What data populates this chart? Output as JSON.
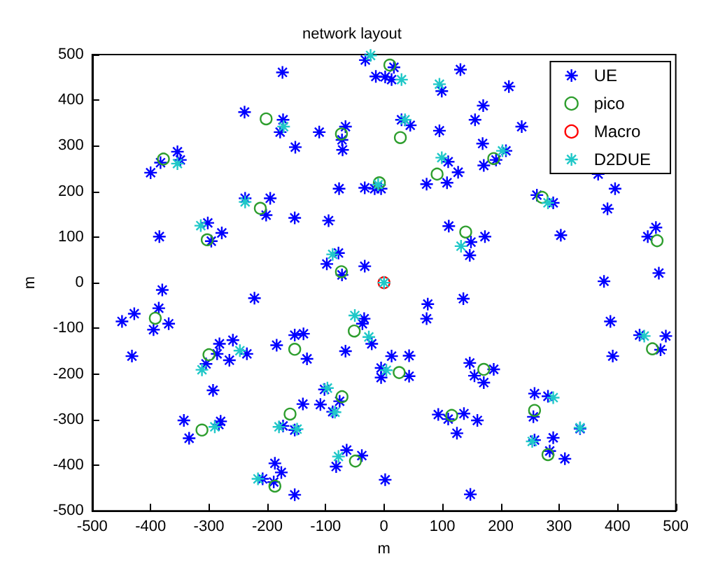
{
  "chart_data": {
    "type": "scatter",
    "title": "network layout",
    "xlabel": "m",
    "ylabel": "m",
    "xlim": [
      -500,
      500
    ],
    "ylim": [
      -500,
      500
    ],
    "xticks": [
      -500,
      -400,
      -300,
      -200,
      -100,
      0,
      100,
      200,
      300,
      400,
      500
    ],
    "yticks": [
      -500,
      -400,
      -300,
      -200,
      -100,
      0,
      100,
      200,
      300,
      400,
      500
    ],
    "grid": false,
    "legend": "top right",
    "series": [
      {
        "name": "UE",
        "color": "#0000ff",
        "marker": "cross",
        "x": [
          -174,
          -239,
          -173,
          -178,
          -152,
          -111,
          -66,
          -72,
          -71,
          -354,
          -349,
          -383,
          -400,
          -77,
          -33,
          -16,
          -5,
          -238,
          -195,
          -202,
          -153,
          -95,
          -302,
          -278,
          -385,
          -296,
          -78,
          -98,
          -33,
          -72,
          -380,
          -32,
          2,
          17,
          -14,
          13,
          131,
          99,
          214,
          170,
          156,
          95,
          30,
          45,
          236,
          169,
          171,
          110,
          127,
          192,
          209,
          73,
          108,
          367,
          396,
          383,
          262,
          290,
          111,
          149,
          173,
          147,
          303,
          466,
          452,
          377,
          471,
          -222,
          -428,
          -386,
          -449,
          -369,
          -395,
          -432,
          -259,
          -282,
          -286,
          -265,
          -235,
          -305,
          -293,
          -343,
          -334,
          -280,
          -283,
          -184,
          -153,
          -138,
          -132,
          -66,
          -34,
          -37,
          -21,
          -5,
          -5,
          -102,
          -139,
          -109,
          -76,
          -88,
          -173,
          -153,
          -187,
          -176,
          -208,
          -189,
          -153,
          -82,
          -64,
          -38,
          2,
          75,
          136,
          73,
          13,
          43,
          43,
          147,
          155,
          171,
          188,
          93,
          110,
          137,
          160,
          125,
          258,
          281,
          256,
          258,
          290,
          284,
          310,
          148,
          388,
          392,
          438,
          483,
          474,
          336
        ],
        "values": [
          461,
          374,
          357,
          330,
          297,
          330,
          342,
          313,
          291,
          287,
          269,
          263,
          241,
          206,
          208,
          206,
          206,
          185,
          185,
          148,
          142,
          136,
          131,
          109,
          101,
          91,
          65,
          41,
          36,
          17,
          -16,
          488,
          451,
          472,
          452,
          445,
          467,
          420,
          430,
          388,
          357,
          333,
          357,
          345,
          342,
          305,
          257,
          265,
          242,
          269,
          289,
          216,
          219,
          238,
          206,
          162,
          192,
          175,
          124,
          89,
          101,
          60,
          104,
          121,
          101,
          3,
          21,
          -34,
          -68,
          -56,
          -85,
          -90,
          -103,
          -161,
          -126,
          -134,
          -156,
          -170,
          -156,
          -178,
          -236,
          -302,
          -341,
          -304,
          -311,
          -137,
          -115,
          -112,
          -167,
          -150,
          -79,
          -90,
          -134,
          -187,
          -208,
          -234,
          -266,
          -267,
          -260,
          -283,
          -314,
          -323,
          -396,
          -416,
          -430,
          -437,
          -465,
          -403,
          -367,
          -379,
          -432,
          -47,
          -35,
          -79,
          -161,
          -160,
          -205,
          -176,
          -204,
          -219,
          -190,
          -289,
          -299,
          -287,
          -302,
          -330,
          -243,
          -249,
          -294,
          -345,
          -340,
          -369,
          -386,
          -464,
          -85,
          -161,
          -115,
          -117,
          -147,
          -320
        ]
      },
      {
        "name": "pico",
        "color": "#2e9e2e",
        "marker": "circle",
        "x": [
          -378,
          -202,
          -73,
          -212,
          -303,
          -8,
          -73,
          10,
          28,
          91,
          188,
          140,
          271,
          468,
          -392,
          -300,
          -153,
          -312,
          -161,
          -72,
          -51,
          -49,
          -187,
          26,
          171,
          116,
          258,
          281,
          460
        ],
        "values": [
          271,
          359,
          326,
          163,
          94,
          219,
          24,
          477,
          318,
          238,
          272,
          111,
          187,
          92,
          -78,
          -158,
          -146,
          -323,
          -288,
          -250,
          -106,
          -391,
          -446,
          -197,
          -190,
          -291,
          -280,
          -377,
          -145
        ]
      },
      {
        "name": "Macro",
        "color": "#ff0000",
        "marker": "circle",
        "x": [
          0
        ],
        "values": [
          0
        ]
      },
      {
        "name": "D2DUE",
        "color": "#20c8c8",
        "marker": "cross",
        "x": [
          -23,
          -172,
          -354,
          -238,
          -314,
          -88,
          -10,
          30,
          95,
          36,
          99,
          203,
          281,
          132,
          0,
          -50,
          -26,
          -247,
          -312,
          -97,
          -84,
          -180,
          -149,
          -290,
          -78,
          -216,
          4,
          290,
          336,
          254,
          446
        ],
        "values": [
          498,
          342,
          261,
          177,
          125,
          62,
          215,
          445,
          435,
          357,
          274,
          289,
          175,
          80,
          0,
          -72,
          -119,
          -149,
          -191,
          -231,
          -284,
          -316,
          -321,
          -316,
          -381,
          -430,
          -192,
          -252,
          -318,
          -348,
          -117
        ]
      }
    ]
  }
}
